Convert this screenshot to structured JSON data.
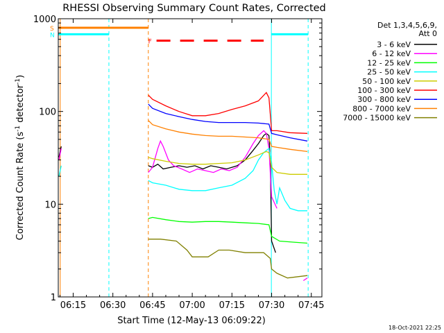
{
  "chart_data": {
    "type": "line",
    "title": "RHESSI Observing Summary Count Rates, Corrected",
    "xlabel": "Start Time (12-May-13 06:09:22)",
    "ylabel_main": "Corrected Count Rate (s",
    "ylabel_sup1": "-1",
    "ylabel_mid": " detector",
    "ylabel_sup2": "-1",
    "ylabel_end": ")",
    "yscale": "log",
    "ylim": [
      1,
      1000
    ],
    "xlim_minutes": [
      369.37,
      469
    ],
    "x_ticks": [
      {
        "label": "06:15",
        "minutes": 375
      },
      {
        "label": "06:30",
        "minutes": 390
      },
      {
        "label": "06:45",
        "minutes": 405
      },
      {
        "label": "07:00",
        "minutes": 420
      },
      {
        "label": "07:15",
        "minutes": 435
      },
      {
        "label": "07:30",
        "minutes": 450
      },
      {
        "label": "07:45",
        "minutes": 465
      }
    ],
    "y_ticks": [
      {
        "label": "1",
        "value": 1
      },
      {
        "label": "10",
        "value": 10
      },
      {
        "label": "100",
        "value": 100
      },
      {
        "label": "1000",
        "value": 1000
      }
    ],
    "legend": {
      "position": "right",
      "header": [
        "Det 1,3,4,5,6,9,",
        "Att 0"
      ]
    },
    "series": [
      {
        "name": "3 - 6 keV",
        "color": "#000000",
        "segments": [
          [
            [
              369.6,
              32
            ],
            [
              370.5,
              42
            ]
          ],
          [
            [
              403.4,
              26
            ],
            [
              405,
              25
            ],
            [
              407,
              27
            ],
            [
              409,
              24
            ],
            [
              412,
              25
            ],
            [
              415,
              26
            ],
            [
              418,
              25
            ],
            [
              421,
              26
            ],
            [
              424,
              24
            ],
            [
              427,
              26
            ],
            [
              430,
              25
            ],
            [
              433,
              24
            ],
            [
              437,
              26
            ],
            [
              440,
              30
            ],
            [
              443,
              38
            ],
            [
              445,
              45
            ],
            [
              447,
              55
            ],
            [
              448,
              58
            ],
            [
              449,
              55
            ],
            [
              449.5,
              30
            ],
            [
              450,
              4
            ],
            [
              451.5,
              3
            ]
          ]
        ]
      },
      {
        "name": "6 - 12 keV",
        "color": "#ff00ff",
        "segments": [
          [
            [
              369.6,
              30
            ],
            [
              370.5,
              40
            ]
          ],
          [
            [
              403.4,
              22
            ],
            [
              405,
              25
            ],
            [
              407,
              40
            ],
            [
              408,
              48
            ],
            [
              409,
              42
            ],
            [
              411,
              30
            ],
            [
              413,
              26
            ],
            [
              416,
              24
            ],
            [
              419,
              22
            ],
            [
              422,
              24
            ],
            [
              425,
              23
            ],
            [
              428,
              22
            ],
            [
              431,
              24
            ],
            [
              434,
              23
            ],
            [
              437,
              25
            ],
            [
              440,
              32
            ],
            [
              443,
              45
            ],
            [
              445,
              55
            ],
            [
              447,
              62
            ],
            [
              448,
              58
            ],
            [
              449,
              40
            ],
            [
              450,
              12
            ],
            [
              452,
              9
            ]
          ],
          [
            [
              462,
              1.5
            ],
            [
              463.5,
              1.6
            ]
          ]
        ]
      },
      {
        "name": "12 - 25 keV",
        "color": "#00ff00",
        "segments": [
          [
            [
              403.4,
              7
            ],
            [
              405,
              7.2
            ],
            [
              410,
              6.8
            ],
            [
              415,
              6.5
            ],
            [
              420,
              6.4
            ],
            [
              425,
              6.5
            ],
            [
              430,
              6.5
            ],
            [
              435,
              6.4
            ],
            [
              440,
              6.3
            ],
            [
              445,
              6.2
            ],
            [
              449,
              6.0
            ],
            [
              450,
              4.5
            ],
            [
              453,
              4
            ],
            [
              458,
              3.9
            ],
            [
              463.5,
              3.8
            ]
          ]
        ]
      },
      {
        "name": "25 - 50 keV",
        "color": "#00ffff",
        "segments": [
          [
            [
              369.6,
              20
            ],
            [
              370.5,
              26
            ]
          ],
          [
            [
              403.4,
              18
            ],
            [
              405,
              17
            ],
            [
              410,
              16
            ],
            [
              415,
              14.5
            ],
            [
              420,
              14
            ],
            [
              425,
              14
            ],
            [
              430,
              15
            ],
            [
              435,
              16
            ],
            [
              440,
              19
            ],
            [
              443,
              23
            ],
            [
              445,
              30
            ],
            [
              447,
              36
            ],
            [
              449,
              40
            ],
            [
              450,
              28
            ],
            [
              451,
              14
            ],
            [
              452,
              10
            ],
            [
              453,
              15
            ],
            [
              455,
              11
            ],
            [
              457,
              9
            ],
            [
              460,
              8.5
            ],
            [
              463.5,
              8.5
            ]
          ]
        ]
      },
      {
        "name": "50 - 100 keV",
        "color": "#cccc00",
        "segments": [
          [
            [
              403.4,
              32
            ],
            [
              405,
              31
            ],
            [
              410,
              29
            ],
            [
              415,
              27.5
            ],
            [
              420,
              27
            ],
            [
              425,
              27
            ],
            [
              430,
              27.5
            ],
            [
              435,
              28
            ],
            [
              440,
              30
            ],
            [
              445,
              34
            ],
            [
              448,
              37
            ],
            [
              449,
              36
            ],
            [
              450,
              25
            ],
            [
              452,
              22
            ],
            [
              457,
              21
            ],
            [
              463.5,
              21
            ]
          ]
        ]
      },
      {
        "name": "100 - 300 keV",
        "color": "#ff0000",
        "segments": [
          [
            [
              403.4,
              150
            ],
            [
              405,
              135
            ],
            [
              410,
              115
            ],
            [
              415,
              100
            ],
            [
              420,
              90
            ],
            [
              425,
              90
            ],
            [
              430,
              95
            ],
            [
              435,
              105
            ],
            [
              440,
              115
            ],
            [
              445,
              130
            ],
            [
              448,
              160
            ],
            [
              449,
              140
            ],
            [
              450,
              62
            ],
            [
              452,
              62
            ],
            [
              457,
              59
            ],
            [
              463.5,
              58
            ]
          ]
        ]
      },
      {
        "name": "300 - 800 keV",
        "color": "#0000ff",
        "segments": [
          [
            [
              403.4,
              120
            ],
            [
              405,
              108
            ],
            [
              410,
              95
            ],
            [
              415,
              88
            ],
            [
              420,
              82
            ],
            [
              425,
              78
            ],
            [
              430,
              76
            ],
            [
              435,
              76
            ],
            [
              440,
              76
            ],
            [
              445,
              75
            ],
            [
              449,
              73
            ],
            [
              450,
              58
            ],
            [
              452,
              56
            ],
            [
              457,
              52
            ],
            [
              463.5,
              48
            ]
          ]
        ]
      },
      {
        "name": "800 - 7000 keV",
        "color": "#ff8000",
        "segments": [
          [
            [
              403.4,
              80
            ],
            [
              405,
              72
            ],
            [
              410,
              65
            ],
            [
              415,
              60
            ],
            [
              420,
              57
            ],
            [
              425,
              55
            ],
            [
              430,
              54
            ],
            [
              435,
              54
            ],
            [
              440,
              53
            ],
            [
              445,
              52
            ],
            [
              449,
              50
            ],
            [
              450,
              42
            ],
            [
              452,
              41
            ],
            [
              457,
              39
            ],
            [
              463.5,
              37
            ]
          ]
        ]
      },
      {
        "name": "7000 - 15000 keV",
        "color": "#808000",
        "segments": [
          [
            [
              403.4,
              4.2
            ],
            [
              408,
              4.2
            ],
            [
              414,
              4.0
            ],
            [
              418,
              3.2
            ],
            [
              420,
              2.7
            ],
            [
              426,
              2.7
            ],
            [
              430,
              3.2
            ],
            [
              434,
              3.2
            ],
            [
              440,
              3.0
            ],
            [
              444,
              3.0
            ],
            [
              447,
              3.0
            ],
            [
              449.5,
              2.6
            ],
            [
              450,
              2.0
            ],
            [
              452,
              1.8
            ],
            [
              456,
              1.6
            ],
            [
              463.5,
              1.7
            ]
          ]
        ]
      }
    ],
    "flags": [
      {
        "label": "S",
        "color": "#ff8000",
        "x_start": 369.37,
        "x_end": 403.4,
        "y": 800,
        "dash": "solid"
      },
      {
        "label": "N",
        "color": "#00ffff",
        "x_start": 369.37,
        "x_end": 388.5,
        "y": 680,
        "dash": "solid"
      },
      {
        "label": "F",
        "color": "#ff0000",
        "x_start": 406.5,
        "x_end": 447,
        "y": 580,
        "dash": "long"
      },
      {
        "label": "",
        "color": "#00ffff",
        "x_start": 450,
        "x_end": 463.8,
        "y": 680,
        "dash": "solid"
      }
    ],
    "vlines": [
      {
        "x": 370.1,
        "color": "#ff8000",
        "style": "solid"
      },
      {
        "x": 388.5,
        "color": "#00ffff",
        "style": "dashed"
      },
      {
        "x": 403.4,
        "color": "#ff8000",
        "style": "dashed"
      },
      {
        "x": 449.9,
        "color": "#00ffff",
        "style": "solid"
      },
      {
        "x": 463.8,
        "color": "#00ffff",
        "style": "dashed"
      }
    ],
    "footer_text": "18-Oct-2021 22:25"
  }
}
